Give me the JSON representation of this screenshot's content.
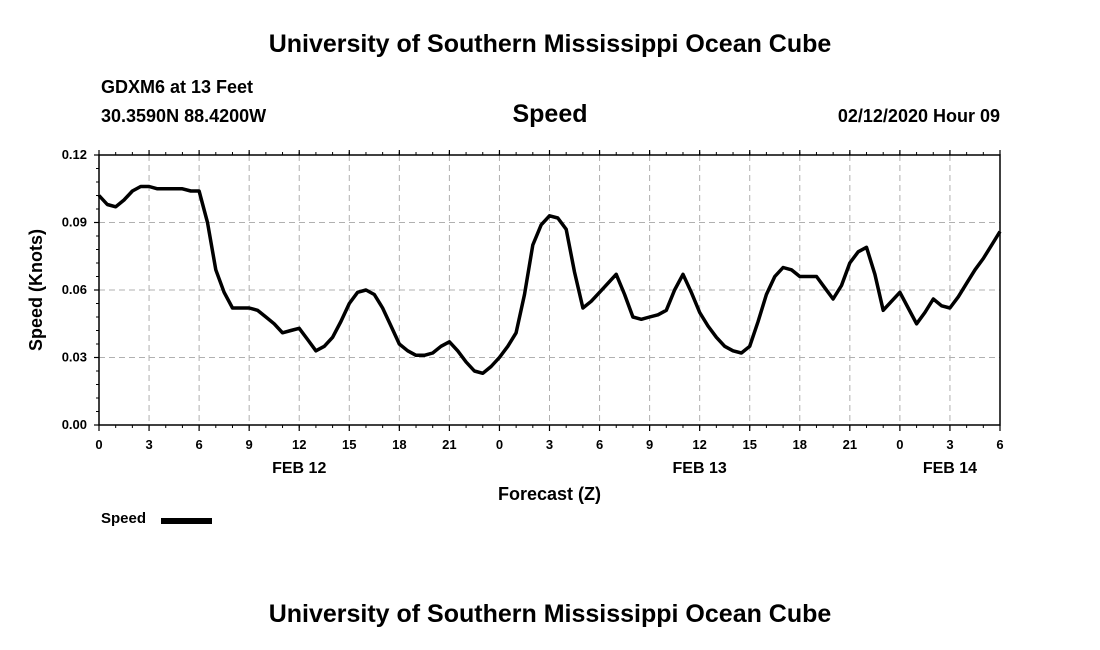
{
  "header": {
    "title_top": "University of Southern Mississippi Ocean Cube",
    "title_bottom": "University of Southern Mississippi Ocean Cube",
    "station_line": "GDXM6 at 13 Feet",
    "coords_line": "30.3590N 88.4200W",
    "datetime": "02/12/2020 Hour 09"
  },
  "legend": {
    "label": "Speed"
  },
  "colors": {
    "line": "#000000",
    "grid": "#b0b0b0",
    "background": "#ffffff"
  },
  "chart_data": {
    "type": "line",
    "title": "Speed",
    "xlabel": "Forecast (Z)",
    "ylabel": "Speed (Knots)",
    "ylim": [
      0,
      0.12
    ],
    "xlim": [
      0,
      54
    ],
    "grid": true,
    "legend_position": "bottom-left",
    "y_ticks": [
      0,
      0.03,
      0.06,
      0.09,
      0.12
    ],
    "y_tick_labels": [
      "0.00",
      "0.03",
      "0.06",
      "0.09",
      "0.12"
    ],
    "x_ticks": [
      0,
      3,
      6,
      9,
      12,
      15,
      18,
      21,
      24,
      27,
      30,
      33,
      36,
      39,
      42,
      45,
      48,
      51,
      54
    ],
    "x_tick_labels": [
      "0",
      "3",
      "6",
      "9",
      "12",
      "15",
      "18",
      "21",
      "0",
      "3",
      "6",
      "9",
      "12",
      "15",
      "18",
      "21",
      "0",
      "3",
      "6"
    ],
    "date_labels": [
      {
        "x": 12,
        "label": "FEB 12"
      },
      {
        "x": 36,
        "label": "FEB 13"
      },
      {
        "x": 51,
        "label": "FEB 14"
      }
    ],
    "series": [
      {
        "name": "Speed",
        "x": [
          0,
          0.5,
          1,
          1.5,
          2,
          2.5,
          3,
          3.5,
          4,
          4.5,
          5,
          5.5,
          6,
          6.5,
          7,
          7.5,
          8,
          8.5,
          9,
          9.5,
          10,
          10.5,
          11,
          11.5,
          12,
          12.5,
          13,
          13.5,
          14,
          14.5,
          15,
          15.5,
          16,
          16.5,
          17,
          17.5,
          18,
          18.5,
          19,
          19.5,
          20,
          20.5,
          21,
          21.5,
          22,
          22.5,
          23,
          23.5,
          24,
          24.5,
          25,
          25.5,
          26,
          26.5,
          27,
          27.5,
          28,
          28.5,
          29,
          29.5,
          30,
          30.5,
          31,
          31.5,
          32,
          32.5,
          33,
          33.5,
          34,
          34.5,
          35,
          35.5,
          36,
          36.5,
          37,
          37.5,
          38,
          38.5,
          39,
          39.5,
          40,
          40.5,
          41,
          41.5,
          42,
          42.5,
          43,
          43.5,
          44,
          44.5,
          45,
          45.5,
          46,
          46.5,
          47,
          47.5,
          48,
          48.5,
          49,
          49.5,
          50,
          50.5,
          51,
          51.5,
          52,
          52.5,
          53,
          53.5,
          54
        ],
        "values": [
          0.102,
          0.098,
          0.097,
          0.1,
          0.104,
          0.106,
          0.106,
          0.105,
          0.105,
          0.105,
          0.105,
          0.104,
          0.104,
          0.09,
          0.069,
          0.059,
          0.052,
          0.052,
          0.052,
          0.051,
          0.048,
          0.045,
          0.041,
          0.042,
          0.043,
          0.038,
          0.033,
          0.035,
          0.039,
          0.046,
          0.054,
          0.059,
          0.06,
          0.058,
          0.052,
          0.044,
          0.036,
          0.033,
          0.031,
          0.031,
          0.032,
          0.035,
          0.037,
          0.033,
          0.028,
          0.024,
          0.023,
          0.026,
          0.03,
          0.035,
          0.041,
          0.058,
          0.08,
          0.089,
          0.093,
          0.092,
          0.087,
          0.068,
          0.052,
          0.055,
          0.059,
          0.063,
          0.067,
          0.058,
          0.048,
          0.047,
          0.048,
          0.049,
          0.051,
          0.06,
          0.067,
          0.059,
          0.05,
          0.044,
          0.039,
          0.035,
          0.033,
          0.032,
          0.035,
          0.046,
          0.058,
          0.066,
          0.07,
          0.069,
          0.066,
          0.066,
          0.066,
          0.061,
          0.056,
          0.062,
          0.072,
          0.077,
          0.079,
          0.067,
          0.051,
          0.055,
          0.059,
          0.052,
          0.045,
          0.05,
          0.056,
          0.053,
          0.052,
          0.057,
          0.063,
          0.069,
          0.074,
          0.08,
          0.086
        ]
      }
    ]
  }
}
